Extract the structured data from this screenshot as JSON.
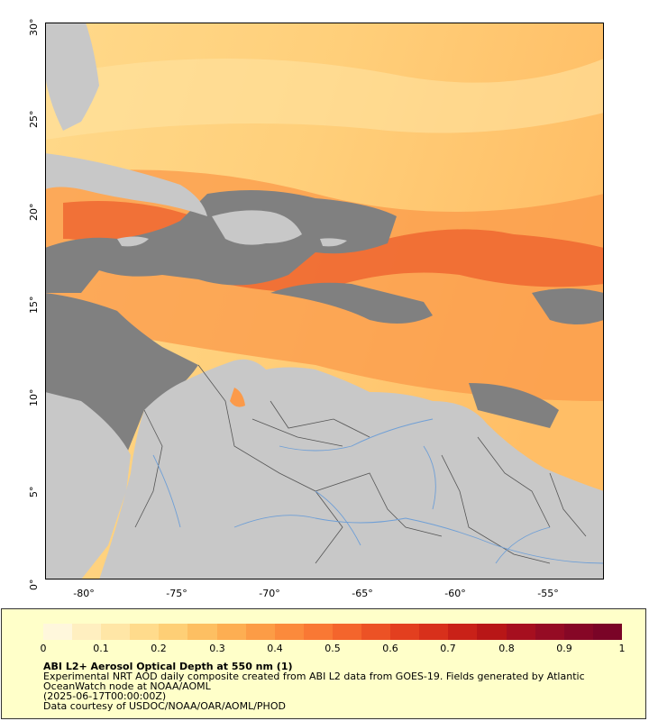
{
  "map": {
    "lat_labels": [
      "30°",
      "25°",
      "20°",
      "15°",
      "10°",
      "5°",
      "0°"
    ],
    "lon_labels": [
      "-80°",
      "-75°",
      "-70°",
      "-65°",
      "-60°",
      "-55°"
    ],
    "lon_range": [
      -82,
      -52
    ],
    "lat_range": [
      0,
      30
    ],
    "colors": {
      "land": "#c8c8c8",
      "no_data": "#808080",
      "river": "#6f9fd6",
      "border": "#555555",
      "aod_low": "#ffeeb8",
      "aod_mid": "#fb8a3c",
      "aod_high": "#e0301e"
    }
  },
  "legend": {
    "ticks": [
      "0",
      "0.1",
      "0.2",
      "0.3",
      "0.4",
      "0.5",
      "0.6",
      "0.7",
      "0.8",
      "0.9",
      "1"
    ],
    "colorbar": [
      "#fff7dc",
      "#ffefc0",
      "#ffe6a6",
      "#ffdb8c",
      "#fecf76",
      "#fdbf62",
      "#fdae52",
      "#fc9c46",
      "#fb8a3c",
      "#f97834",
      "#f4652c",
      "#ec5225",
      "#e33f1f",
      "#d8301b",
      "#c92118",
      "#b81617",
      "#a60f1f",
      "#950b24",
      "#860726",
      "#7a0427"
    ],
    "title": "ABI L2+ Aerosol Optical Depth at 550 nm (1)",
    "desc_line1": "Experimental NRT AOD daily composite created from ABI L2 data from GOES-19. Fields generated by Atlantic",
    "desc_line2": "OceanWatch node at NOAA/AOML",
    "desc_line3": "(2025-06-17T00:00:00Z)",
    "desc_line4": "Data courtesy of USDOC/NOAA/OAR/AOML/PHOD"
  }
}
